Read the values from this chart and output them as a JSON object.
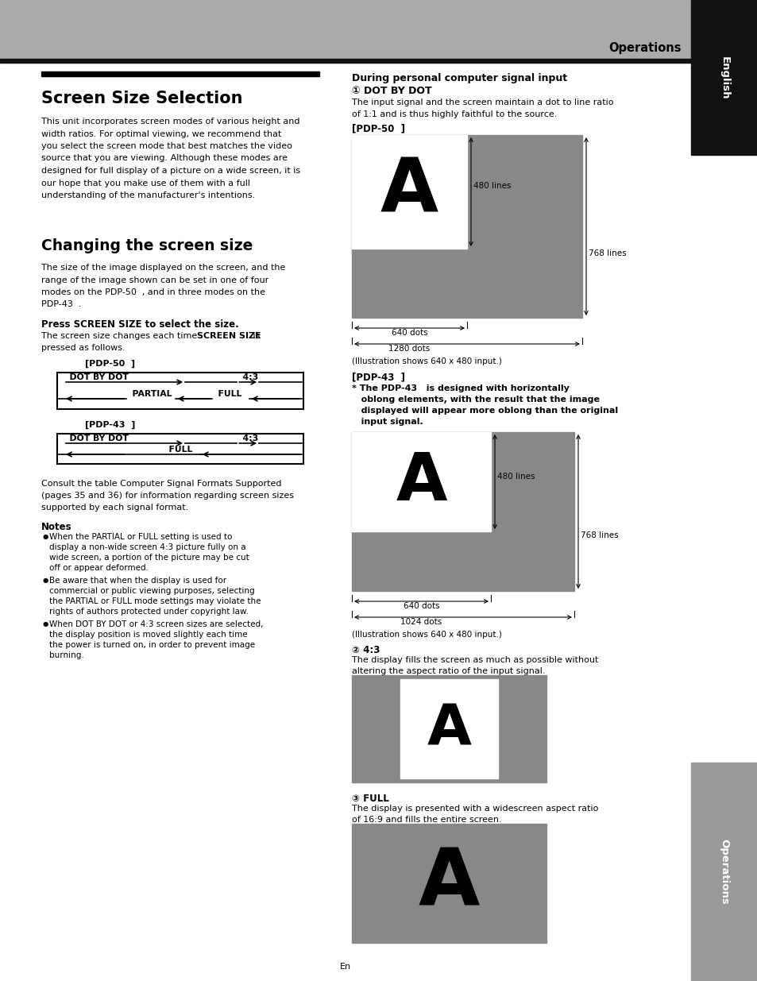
{
  "page_bg": "#ffffff",
  "header_bg": "#aaaaaa",
  "header_text": "Operations",
  "sidebar_eng_bg": "#111111",
  "sidebar_eng_text": "English",
  "sidebar_ops_bg": "#999999",
  "sidebar_ops_text": "Operations",
  "title1": "Screen Size Selection",
  "title2": "Changing the screen size",
  "body_text_left": [
    "This unit incorporates screen modes of various height and",
    "width ratios. For optimal viewing, we recommend that",
    "you select the screen mode that best matches the video",
    "source that you are viewing. Although these modes are",
    "designed for full display of a picture on a wide screen, it is",
    "our hope that you make use of them with a full",
    "understanding of the manufacturer's intentions."
  ],
  "body_text2": [
    "The size of the image displayed on the screen, and the",
    "range of the image shown can be set in one of four",
    "modes on the PDP-50  , and in three modes on the",
    "PDP-43  ."
  ],
  "press_title": "Press SCREEN SIZE to select the size.",
  "press_line1_normal": "The screen size changes each time ",
  "press_line1_bold": "SCREEN SIZE",
  "press_line1_end": " is",
  "press_line2": "pressed as follows.",
  "pdp50_box_label": "[PDP-50  ]",
  "pdp43_box_label": "[PDP-43  ]",
  "consult_text": [
    "Consult the table Computer Signal Formats Supported",
    "(pages 35 and 36) for information regarding screen sizes",
    "supported by each signal format."
  ],
  "notes_title": "Notes",
  "notes": [
    "When the PARTIAL or FULL setting is used to display a non-wide screen 4:3 picture fully on a wide screen, a portion of the picture may be cut off or appear deformed.",
    "Be aware that when the display is used for commercial or public viewing purposes, selecting the PARTIAL or FULL mode settings may violate the rights of authors protected under copyright law.",
    "When DOT BY DOT or 4:3 screen sizes are selected, the display position is moved slightly each time the power is turned on, in order to prevent image burning."
  ],
  "right_title1": "During personal computer signal input",
  "right_dot_title": "① DOT BY DOT",
  "right_dot_body1": "The input signal and the screen maintain a dot to line ratio",
  "right_dot_body2": "of 1:1 and is thus highly faithful to the source.",
  "pdp50_diag_label": "[PDP-50  ]",
  "pdp50_480": "480 lines",
  "pdp50_768": "768 lines",
  "pdp50_640": "640 dots",
  "pdp50_1280": "1280 dots",
  "pdp50_caption": "(Illustration shows 640 x 480 input.)",
  "pdp43_diag_label": "[PDP-43  ]",
  "pdp43_note_lines": [
    "* The PDP-43   is designed with horizontally",
    "   oblong elements, with the result that the image",
    "   displayed will appear more oblong than the original",
    "   input signal."
  ],
  "pdp43_480": "480 lines",
  "pdp43_768": "768 lines",
  "pdp43_640": "640 dots",
  "pdp43_1024": "1024 dots",
  "pdp43_caption": "(Illustration shows 640 x 480 input.)",
  "four3_title": "② 4:3",
  "four3_body1": "The display fills the screen as much as possible without",
  "four3_body2": "altering the aspect ratio of the input signal.",
  "full_title": "③ FULL",
  "full_body1": "The display is presented with a widescreen aspect ratio",
  "full_body2": "of 16:9 and fills the entire screen.",
  "page_num": "En",
  "gray_diag": "#888888",
  "white_inner": "#ffffff"
}
